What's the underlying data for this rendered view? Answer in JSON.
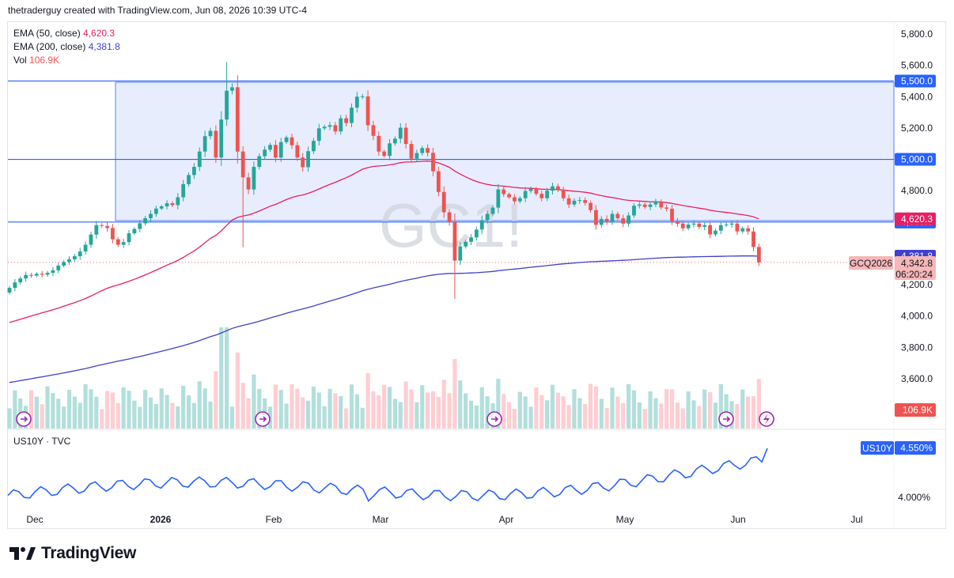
{
  "header": {
    "attribution": "thetraderguy created with TradingView.com, Jun 08, 2026 10:39 UTC-4"
  },
  "legend": {
    "ema50_label": "EMA (50, close)",
    "ema50_value": "4,620.3",
    "ema200_label": "EMA (200, close)",
    "ema200_value": "4,381.8",
    "vol_label": "Vol",
    "vol_value": "106.9K"
  },
  "watermark": "GC1!",
  "brand": "TradingView",
  "colors": {
    "up": "#26a69a",
    "down": "#ef5350",
    "up_vol": "#b2dfdb",
    "down_vol": "#ffcdd2",
    "ema50": "#e91e63",
    "ema200": "#3f3fd1",
    "level_line": "#2962ff",
    "zone_fill": "#e8edfd",
    "us10y": "#2962ff"
  },
  "chart_data": [
    {
      "type": "candlestick",
      "symbol": "GC1!",
      "price_axis": [
        "5,800.0",
        "5,600.0",
        "5,400.0",
        "5,200.0",
        "5,000.0",
        "4,800.0",
        "4,600.0",
        "4,400.0",
        "4,200.0",
        "4,000.0",
        "3,800.0",
        "3,600.0"
      ],
      "price_ticks": [
        5800,
        5600,
        5400,
        5200,
        5000,
        4800,
        4600,
        4400,
        4200,
        4000,
        3800,
        3600
      ],
      "ylim": [
        3600,
        5800
      ],
      "time_axis": [
        "Dec",
        "2026",
        "Feb",
        "Mar",
        "Apr",
        "May",
        "Jun",
        "Jul"
      ],
      "horizontal_levels": [
        {
          "label": "5,500.0",
          "value": 5500
        },
        {
          "label": "5,000.0",
          "value": 5000
        },
        {
          "label": "4,600.0",
          "value": 4600
        }
      ],
      "zone": {
        "top": 5500,
        "bottom": 4610,
        "start_date": "2026-01-12"
      },
      "markers": {
        "ema50_label": "4,620.3",
        "ema200_label": "4,381.8",
        "symbol_label": "GCQ2026",
        "price_label": "4,342.8",
        "countdown_label": "06:20:24",
        "volume_label": "106.9K"
      },
      "close_values": [
        4180,
        4215,
        4240,
        4262,
        4258,
        4270,
        4264,
        4276,
        4292,
        4322,
        4345,
        4362,
        4382,
        4412,
        4455,
        4520,
        4580,
        4575,
        4562,
        4490,
        4455,
        4472,
        4528,
        4556,
        4592,
        4624,
        4652,
        4686,
        4700,
        4720,
        4708,
        4758,
        4842,
        4900,
        4952,
        5050,
        5148,
        5182,
        5012,
        5254,
        5438,
        5460,
        5050,
        4885,
        4808,
        4952,
        5020,
        5062,
        5092,
        5012,
        5110,
        5140,
        5090,
        5012,
        4950,
        5052,
        5118,
        5198,
        5208,
        5218,
        5178,
        5262,
        5232,
        5330,
        5400,
        5402,
        5218,
        5150,
        5050,
        5022,
        5102,
        5132,
        5202,
        5098,
        5004,
        5040,
        5072,
        5042,
        4924,
        4792,
        4662,
        4598,
        4354,
        4444,
        4474,
        4502,
        4552,
        4612,
        4652,
        4692,
        4808,
        4778,
        4758,
        4732,
        4752,
        4798,
        4812,
        4780,
        4752,
        4800,
        4828,
        4808,
        4752,
        4712,
        4736,
        4740,
        4722,
        4676,
        4582,
        4620,
        4604,
        4652,
        4624,
        4590,
        4642,
        4704,
        4712,
        4696,
        4712,
        4732,
        4693,
        4685,
        4605,
        4590,
        4560,
        4584,
        4590,
        4569,
        4580,
        4521,
        4545,
        4580,
        4584,
        4590,
        4540,
        4560,
        4540,
        4441,
        4342.8
      ],
      "ema50_last": 4620.3,
      "ema200_last": 4381.8,
      "volume_last": "106.9K"
    },
    {
      "type": "line",
      "symbol": "US10Y",
      "source": "TVC",
      "title": "US10Y · TVC",
      "yaxis_labels": [
        "4.550%",
        "4.000%"
      ],
      "current_value": "4.550%",
      "y_first": 4.02,
      "y_last": 4.55
    }
  ]
}
